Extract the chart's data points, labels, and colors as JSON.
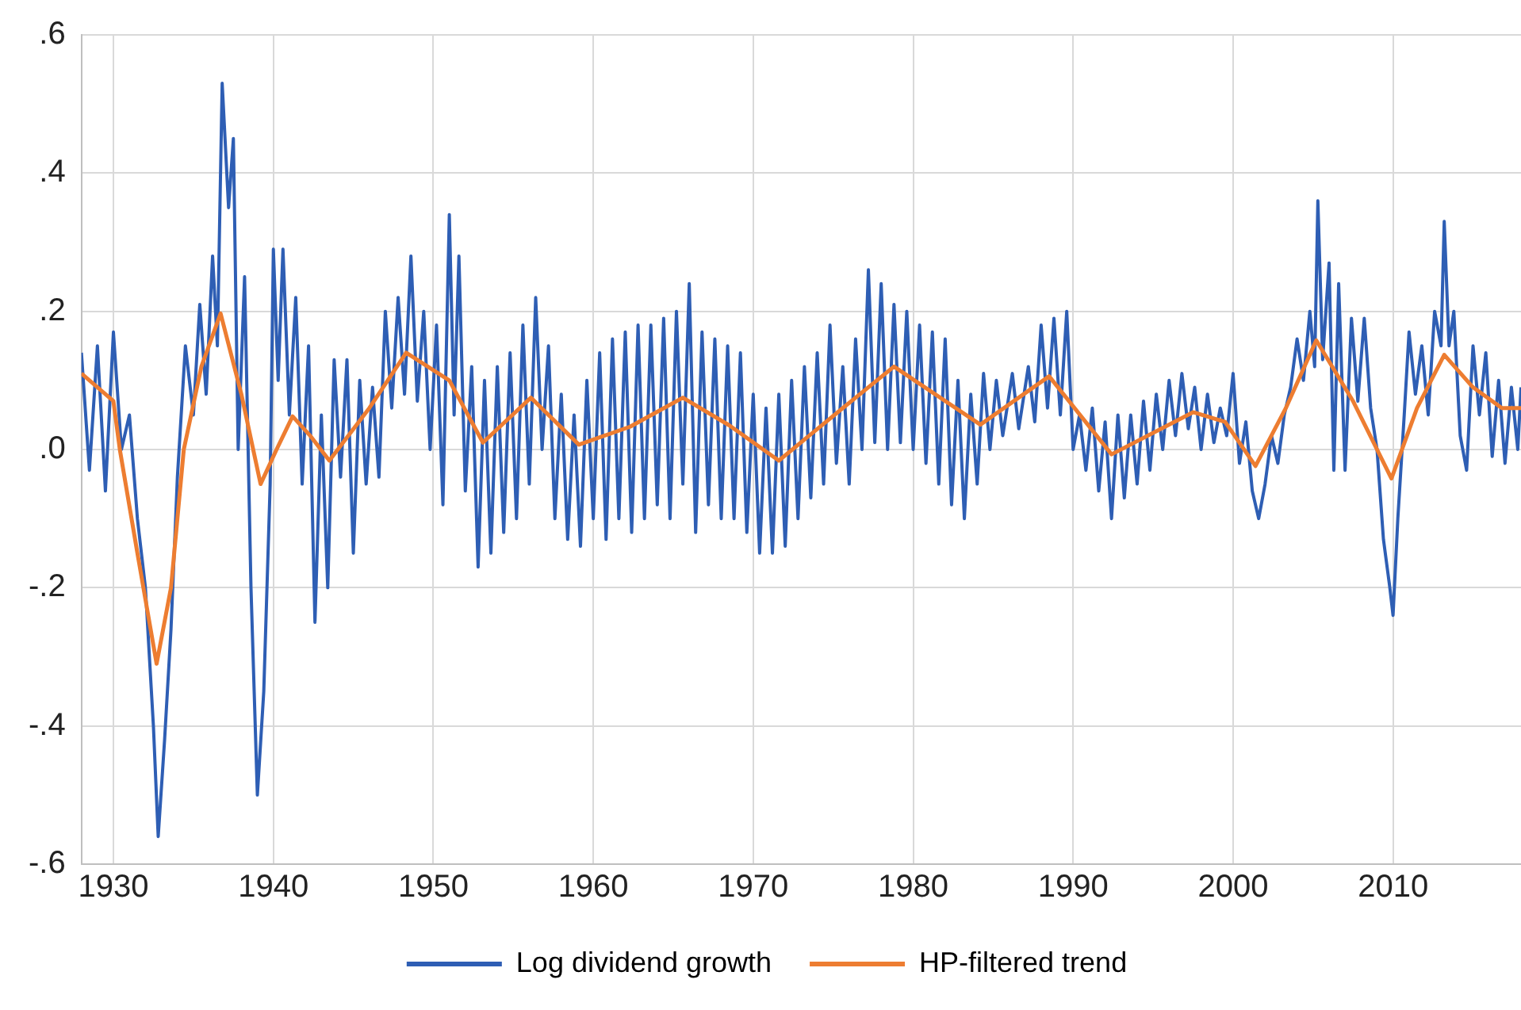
{
  "chart_data": {
    "type": "line",
    "xlim": [
      1928,
      2018
    ],
    "xticks": [
      1930,
      1940,
      1950,
      1960,
      1970,
      1980,
      1990,
      2000,
      2010
    ],
    "ylim": [
      -0.6,
      0.6
    ],
    "yticks": [
      {
        "value": -0.6,
        "label": "-.6"
      },
      {
        "value": -0.4,
        "label": "-.4"
      },
      {
        "value": -0.2,
        "label": "-.2"
      },
      {
        "value": 0,
        "label": ".0"
      },
      {
        "value": 0.2,
        "label": ".2"
      },
      {
        "value": 0.4,
        "label": ".4"
      },
      {
        "value": 0.6,
        "label": ".6"
      }
    ],
    "grid": true,
    "legend": "bottom",
    "marker": "none",
    "series": [
      {
        "name": "Log dividend growth",
        "color": "#2e5eb4",
        "x": [
          1928,
          1928.5,
          1929,
          1929.5,
          1930,
          1930.5,
          1931,
          1931.5,
          1932,
          1932.5,
          1932.8,
          1933.2,
          1933.6,
          1934,
          1934.5,
          1935,
          1935.4,
          1935.8,
          1936.2,
          1936.5,
          1936.8,
          1937.2,
          1937.5,
          1937.8,
          1938.2,
          1938.6,
          1939,
          1939.4,
          1939.8,
          1940,
          1940.3,
          1940.6,
          1941,
          1941.4,
          1941.8,
          1942.2,
          1942.6,
          1943,
          1943.4,
          1943.8,
          1944.2,
          1944.6,
          1945,
          1945.4,
          1945.8,
          1946.2,
          1946.6,
          1947,
          1947.4,
          1947.8,
          1948.2,
          1948.6,
          1949,
          1949.4,
          1949.8,
          1950.2,
          1950.6,
          1951,
          1951.3,
          1951.6,
          1952,
          1952.4,
          1952.8,
          1953.2,
          1953.6,
          1954,
          1954.4,
          1954.8,
          1955.2,
          1955.6,
          1956,
          1956.4,
          1956.8,
          1957.2,
          1957.6,
          1958,
          1958.4,
          1958.8,
          1959.2,
          1959.6,
          1960,
          1960.4,
          1960.8,
          1961.2,
          1961.6,
          1962,
          1962.4,
          1962.8,
          1963.2,
          1963.6,
          1964,
          1964.4,
          1964.8,
          1965.2,
          1965.6,
          1966,
          1966.4,
          1966.8,
          1967.2,
          1967.6,
          1968,
          1968.4,
          1968.8,
          1969.2,
          1969.6,
          1970,
          1970.4,
          1970.8,
          1971.2,
          1971.6,
          1972,
          1972.4,
          1972.8,
          1973.2,
          1973.6,
          1974,
          1974.4,
          1974.8,
          1975.2,
          1975.6,
          1976,
          1976.4,
          1976.8,
          1977.2,
          1977.6,
          1978,
          1978.4,
          1978.8,
          1979.2,
          1979.6,
          1980,
          1980.4,
          1980.8,
          1981.2,
          1981.6,
          1982,
          1982.4,
          1982.8,
          1983.2,
          1983.6,
          1984,
          1984.4,
          1984.8,
          1985.2,
          1985.6,
          1986.2,
          1986.6,
          1987.2,
          1987.6,
          1988,
          1988.4,
          1988.8,
          1989.2,
          1989.6,
          1990,
          1990.4,
          1990.8,
          1991.2,
          1991.6,
          1992,
          1992.4,
          1992.8,
          1993.2,
          1993.6,
          1994,
          1994.4,
          1994.8,
          1995.2,
          1995.6,
          1996,
          1996.4,
          1996.8,
          1997.2,
          1997.6,
          1998,
          1998.4,
          1998.8,
          1999.2,
          1999.6,
          2000,
          2000.4,
          2000.8,
          2001.2,
          2001.6,
          2002,
          2002.4,
          2002.8,
          2003.2,
          2003.6,
          2004,
          2004.4,
          2004.8,
          2005.1,
          2005.3,
          2005.6,
          2006,
          2006.3,
          2006.6,
          2007,
          2007.4,
          2007.8,
          2008.2,
          2008.6,
          2009,
          2009.4,
          2009.8,
          2010,
          2010.3,
          2010.7,
          2011,
          2011.4,
          2011.8,
          2012.2,
          2012.6,
          2013,
          2013.2,
          2013.5,
          2013.8,
          2014.2,
          2014.6,
          2015,
          2015.4,
          2015.8,
          2016.2,
          2016.6,
          2017,
          2017.4,
          2017.8,
          2018
        ],
        "values": [
          0.14,
          -0.03,
          0.15,
          -0.06,
          0.17,
          0,
          0.05,
          -0.1,
          -0.2,
          -0.4,
          -0.56,
          -0.42,
          -0.26,
          -0.04,
          0.15,
          0.05,
          0.21,
          0.08,
          0.28,
          0.15,
          0.53,
          0.35,
          0.45,
          0,
          0.25,
          -0.2,
          -0.5,
          -0.35,
          -0.05,
          0.29,
          0.1,
          0.29,
          0.05,
          0.22,
          -0.05,
          0.15,
          -0.25,
          0.05,
          -0.2,
          0.13,
          -0.04,
          0.13,
          -0.15,
          0.1,
          -0.05,
          0.09,
          -0.04,
          0.2,
          0.06,
          0.22,
          0.08,
          0.28,
          0.07,
          0.2,
          0,
          0.18,
          -0.08,
          0.34,
          0.05,
          0.28,
          -0.06,
          0.12,
          -0.17,
          0.1,
          -0.15,
          0.12,
          -0.12,
          0.14,
          -0.1,
          0.18,
          -0.05,
          0.22,
          0,
          0.15,
          -0.1,
          0.08,
          -0.13,
          0.05,
          -0.14,
          0.1,
          -0.1,
          0.14,
          -0.13,
          0.16,
          -0.1,
          0.17,
          -0.12,
          0.18,
          -0.1,
          0.18,
          -0.08,
          0.19,
          -0.1,
          0.2,
          -0.05,
          0.24,
          -0.12,
          0.17,
          -0.08,
          0.16,
          -0.1,
          0.15,
          -0.1,
          0.14,
          -0.12,
          0.08,
          -0.15,
          0.06,
          -0.15,
          0.08,
          -0.14,
          0.1,
          -0.1,
          0.12,
          -0.07,
          0.14,
          -0.05,
          0.18,
          -0.02,
          0.12,
          -0.05,
          0.16,
          0,
          0.26,
          0.01,
          0.24,
          0,
          0.21,
          0.01,
          0.2,
          0,
          0.18,
          -0.02,
          0.17,
          -0.05,
          0.16,
          -0.08,
          0.1,
          -0.1,
          0.08,
          -0.05,
          0.11,
          0,
          0.1,
          0.02,
          0.11,
          0.03,
          0.12,
          0.04,
          0.18,
          0.06,
          0.19,
          0.05,
          0.2,
          0,
          0.05,
          -0.03,
          0.06,
          -0.06,
          0.04,
          -0.1,
          0.05,
          -0.07,
          0.05,
          -0.05,
          0.07,
          -0.03,
          0.08,
          0,
          0.1,
          0.02,
          0.11,
          0.03,
          0.09,
          0,
          0.08,
          0.01,
          0.06,
          0.02,
          0.11,
          -0.02,
          0.04,
          -0.06,
          -0.1,
          -0.05,
          0.02,
          -0.02,
          0.05,
          0.09,
          0.16,
          0.1,
          0.2,
          0.12,
          0.36,
          0.13,
          0.27,
          -0.03,
          0.24,
          -0.03,
          0.19,
          0.07,
          0.19,
          0.06,
          0,
          -0.13,
          -0.2,
          -0.24,
          -0.1,
          0.05,
          0.17,
          0.08,
          0.15,
          0.05,
          0.2,
          0.15,
          0.33,
          0.15,
          0.2,
          0.02,
          -0.03,
          0.15,
          0.05,
          0.14,
          -0.01,
          0.1,
          -0.02,
          0.09,
          0,
          0.09
        ]
      },
      {
        "name": "HP-filtered trend",
        "color": "#ed7d31",
        "x": [
          1928,
          1930,
          1930.4,
          1931.5,
          1932.7,
          1933.6,
          1934.4,
          1935.5,
          1936.7,
          1938,
          1939.2,
          1940.2,
          1941.2,
          1942.3,
          1943.5,
          1946,
          1948.3,
          1951,
          1953.1,
          1956.1,
          1959.1,
          1962.3,
          1965.6,
          1968.5,
          1971.6,
          1975.6,
          1978.8,
          1984.2,
          1988.5,
          1992.4,
          1997.5,
          1999.5,
          2001.4,
          2003.3,
          2005.2,
          2007.5,
          2009.9,
          2011.5,
          2013.2,
          2015,
          2016.8,
          2018
        ],
        "values": [
          0.11,
          0.07,
          0,
          -0.15,
          -0.31,
          -0.2,
          0,
          0.12,
          0.197,
          0.08,
          -0.05,
          0,
          0.048,
          0.02,
          -0.016,
          0.06,
          0.14,
          0.1,
          0.01,
          0.075,
          0.007,
          0.033,
          0.075,
          0.035,
          -0.016,
          0.06,
          0.12,
          0.036,
          0.106,
          -0.007,
          0.054,
          0.04,
          -0.024,
          0.06,
          0.158,
          0.07,
          -0.042,
          0.06,
          0.137,
          0.09,
          0.06,
          0.06
        ]
      }
    ]
  }
}
